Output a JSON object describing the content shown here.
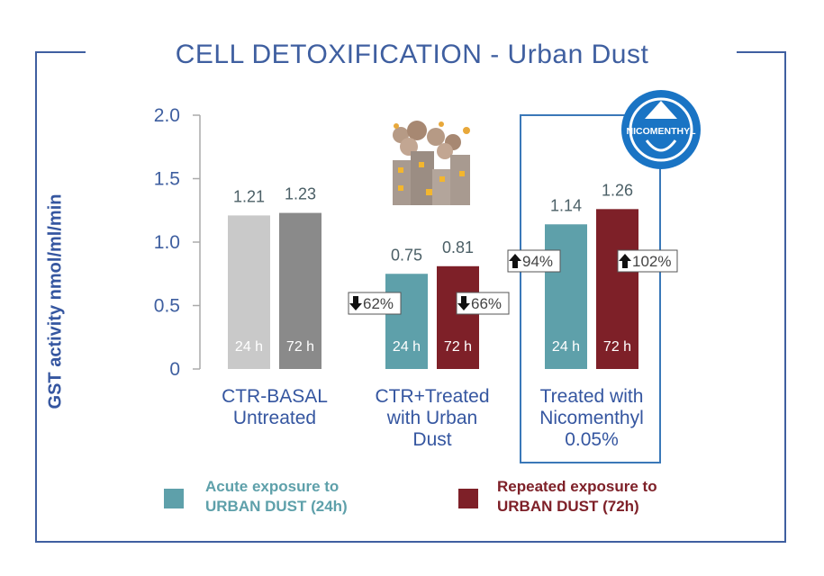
{
  "title": "CELL DETOXIFICATION - Urban Dust",
  "colors": {
    "frame": "#3f5fa0",
    "axis_text": "#3f5fa0",
    "group_label": "#3556a0",
    "value_label": "#4b5f66",
    "acute": "#5ea0aa",
    "repeated": "#7e2028",
    "basal_24": "#c9c9c9",
    "basal_72": "#8a8a8a",
    "highlight_box": "#3a78b8",
    "badge": "#1a74c4"
  },
  "legend": {
    "acute_line1": "Acute exposure to",
    "acute_line2": "URBAN DUST (24h)",
    "repeated_line1": "Repeated exposure to",
    "repeated_line2": "URBAN DUST (72h)"
  },
  "badge_text": "NICOMENTHYL",
  "chart_data": {
    "type": "bar",
    "title": "CELL DETOXIFICATION - Urban Dust",
    "ylabel": "GST activity nmol/ml/min",
    "ylim": [
      0,
      2.0
    ],
    "yticks": [
      0,
      0.5,
      1.0,
      1.5,
      2.0
    ],
    "ytick_labels": [
      "0",
      "0.5",
      "1.0",
      "1.5",
      "2.0"
    ],
    "groups": [
      {
        "label_lines": [
          "CTR-BASAL",
          "Untreated"
        ],
        "bars": [
          {
            "series": "24 h",
            "value": 1.21,
            "label": "1.21",
            "inbar": "24 h",
            "color": "#c9c9c9",
            "change": ""
          },
          {
            "series": "72 h",
            "value": 1.23,
            "label": "1.23",
            "inbar": "72 h",
            "color": "#8a8a8a",
            "change": ""
          }
        ]
      },
      {
        "label_lines": [
          "CTR+Treated",
          "with Urban",
          "Dust"
        ],
        "bars": [
          {
            "series": "24 h",
            "value": 0.75,
            "label": "0.75",
            "inbar": "24 h",
            "color": "#5ea0aa",
            "change": "62%",
            "direction": "down"
          },
          {
            "series": "72 h",
            "value": 0.81,
            "label": "0.81",
            "inbar": "72 h",
            "color": "#7e2028",
            "change": "66%",
            "direction": "down"
          }
        ]
      },
      {
        "label_lines": [
          "Treated with",
          "Nicomenthyl",
          "0.05%"
        ],
        "bars": [
          {
            "series": "24 h",
            "value": 1.14,
            "label": "1.14",
            "inbar": "24 h",
            "color": "#5ea0aa",
            "change": "94%",
            "direction": "up"
          },
          {
            "series": "72 h",
            "value": 1.26,
            "label": "1.26",
            "inbar": "72 h",
            "color": "#7e2028",
            "change": "102%",
            "direction": "up"
          }
        ]
      }
    ]
  }
}
